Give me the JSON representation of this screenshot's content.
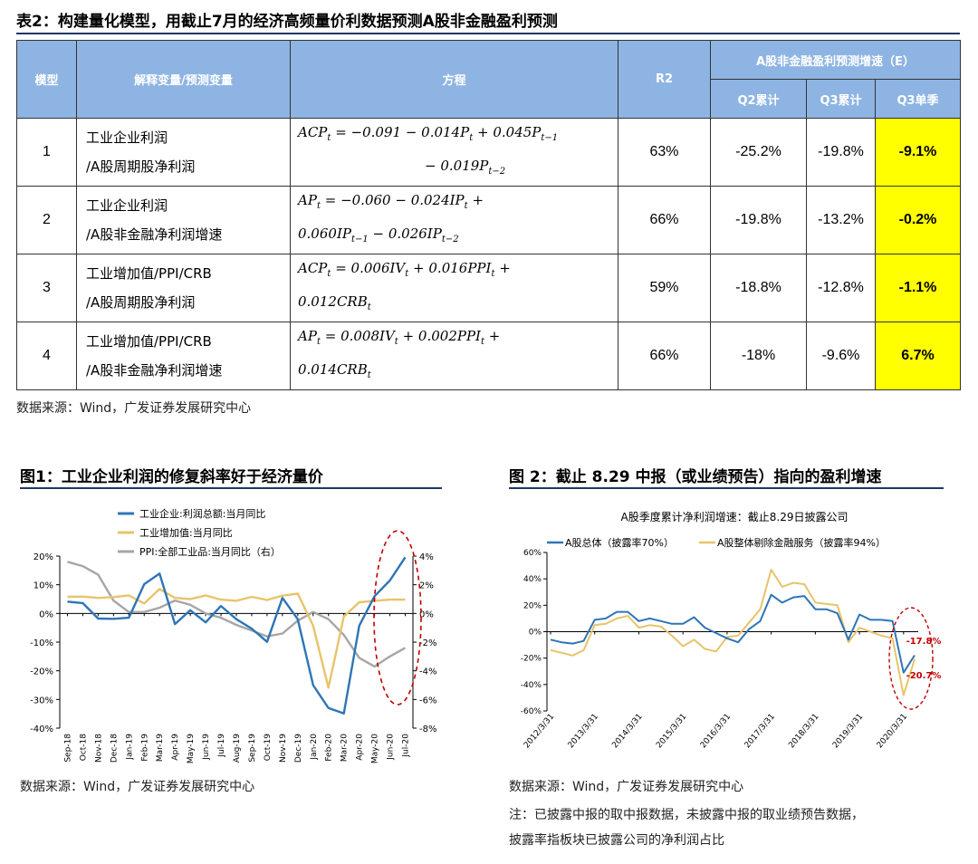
{
  "table": {
    "title": "表2：构建量化模型，用截止7月的经济高频量价利数据预测A股非金融盈利预测",
    "headers": {
      "model": "模型",
      "variables": "解释变量/预测变量",
      "equation": "方程",
      "r2": "R2",
      "forecast_group": "A股非金融盈利预测增速（E）",
      "q2": "Q2累计",
      "q3": "Q3累计",
      "q3s": "Q3单季"
    },
    "rows": [
      {
        "model": "1",
        "var1": "工业企业利润",
        "var2": "/A股周期股净利润",
        "r2": "63%",
        "q2": "-25.2%",
        "q3": "-19.8%",
        "q3s": "-9.1%"
      },
      {
        "model": "2",
        "var1": "工业企业利润",
        "var2": "/A股非金融净利润增速",
        "r2": "66%",
        "q2": "-19.8%",
        "q3": "-13.2%",
        "q3s": "-0.2%"
      },
      {
        "model": "3",
        "var1": "工业增加值/PPI/CRB",
        "var2": "/A股周期股净利润",
        "r2": "59%",
        "q2": "-18.8%",
        "q3": "-12.8%",
        "q3s": "-1.1%"
      },
      {
        "model": "4",
        "var1": "工业增加值/PPI/CRB",
        "var2": "/A股非金融净利润增速",
        "r2": "66%",
        "q2": "-18%",
        "q3": "-9.6%",
        "q3s": "6.7%"
      }
    ],
    "source": "数据来源：Wind，广发证券发展研究中心"
  },
  "fig1": {
    "title": "图1：工业企业利润的修复斜率好于经济量价",
    "legend": [
      "工业企业:利润总额:当月同比",
      "工业增加值:当月同比",
      "PPI:全部工业品:当月同比（右）"
    ],
    "source": "数据来源：Wind，广发证券发展研究中心"
  },
  "fig2": {
    "title": "图 2：截止 8.29 中报（或业绩预告）指向的盈利增速",
    "chart_title": "A股季度累计净利润增速：截止8.29日披露公司",
    "legend": [
      "A股总体（披露率70%）",
      "A股整体剔除金融服务（披露率94%）"
    ],
    "source": "数据来源：Wind，广发证券发展研究中心",
    "note1": "注：已披露中报的取中报数据，未披露中报的取业绩预告数据，",
    "note2": "披露率指板块已披露公司的净利润占比"
  },
  "colors": {
    "header": "#8eb4e3",
    "highlight": "#ffff00",
    "blue": "#2e75b6",
    "gold": "#e8c46a",
    "gray": "#a6a6a6",
    "red": "#c00000"
  },
  "chart_data": [
    {
      "type": "line",
      "x": [
        "Sep-18",
        "Oct-18",
        "Nov-18",
        "Dec-18",
        "Jan-19",
        "Feb-19",
        "Mar-19",
        "Apr-19",
        "May-19",
        "Jun-19",
        "Jul-19",
        "Aug-19",
        "Sep-19",
        "Oct-19",
        "Nov-19",
        "Dec-19",
        "Jan-20",
        "Feb-20",
        "Mar-20",
        "Apr-20",
        "May-20",
        "Jun-20",
        "Jul-20"
      ],
      "ylim": [
        -40,
        20
      ],
      "y2lim": [
        -8,
        4
      ],
      "yticks": [
        "20%",
        "10%",
        "0%",
        "-10%",
        "-20%",
        "-30%",
        "-40%"
      ],
      "y2ticks": [
        "4%",
        "2%",
        "0%",
        "-2%",
        "-4%",
        "-6%",
        "-8%"
      ],
      "series": [
        {
          "name": "工业企业:利润总额:当月同比",
          "axis": "left",
          "values": [
            4.1,
            3.6,
            -1.8,
            -1.9,
            -1.5,
            10.2,
            13.9,
            -3.7,
            1.1,
            -3.1,
            2.6,
            -2,
            -5.3,
            -9.9,
            5.4,
            -2,
            -25,
            -33,
            -34.9,
            -4.3,
            6,
            11.5,
            19.6
          ]
        },
        {
          "name": "工业增加值:当月同比",
          "axis": "left",
          "values": [
            5.8,
            5.9,
            5.4,
            5.7,
            6.3,
            3.5,
            8.5,
            5.4,
            5,
            6.3,
            4.8,
            4.4,
            5.8,
            4.7,
            6.2,
            6.9,
            -4.3,
            -25.9,
            -1.1,
            3.9,
            4.4,
            4.8,
            4.8
          ]
        },
        {
          "name": "PPI:全部工业品:当月同比（右）",
          "axis": "right",
          "values": [
            3.6,
            3.3,
            2.7,
            0.9,
            0.1,
            0.1,
            0.4,
            0.9,
            0.6,
            0,
            -0.3,
            -0.8,
            -1.2,
            -1.6,
            -1.4,
            -0.5,
            0.1,
            -0.4,
            -1.5,
            -3.1,
            -3.7,
            -3,
            -2.4
          ]
        }
      ]
    },
    {
      "type": "line",
      "title": "A股季度累计净利润增速：截止8.29日披露公司",
      "x": [
        "2012/3/31",
        "2012/6/30",
        "2012/9/30",
        "2012/12/31",
        "2013/3/31",
        "2013/6/30",
        "2013/9/30",
        "2013/12/31",
        "2014/3/31",
        "2014/6/30",
        "2014/9/30",
        "2014/12/31",
        "2015/3/31",
        "2015/6/30",
        "2015/9/30",
        "2015/12/31",
        "2016/3/31",
        "2016/6/30",
        "2016/9/30",
        "2016/12/31",
        "2017/3/31",
        "2017/6/30",
        "2017/9/30",
        "2017/12/31",
        "2018/3/31",
        "2018/6/30",
        "2018/9/30",
        "2018/12/31",
        "2019/3/31",
        "2019/6/30",
        "2019/9/30",
        "2019/12/31",
        "2020/3/31",
        "2020/6/30"
      ],
      "xticks": [
        "2012/3/31",
        "2013/3/31",
        "2014/3/31",
        "2015/3/31",
        "2016/3/31",
        "2017/3/31",
        "2018/3/31",
        "2019/3/31",
        "2020/3/31"
      ],
      "ylim": [
        -60,
        60
      ],
      "yticks": [
        "60%",
        "40%",
        "20%",
        "0%",
        "-20%",
        "-40%",
        "-60%"
      ],
      "annotations": [
        "-17.8%",
        "-20.7%"
      ],
      "series": [
        {
          "name": "A股总体（披露率70%）",
          "values": [
            -6,
            -8,
            -9,
            -7,
            9,
            10,
            15,
            15,
            8,
            10,
            8,
            6,
            6,
            11,
            3,
            -1,
            -5,
            -8,
            2,
            8,
            28,
            22,
            26,
            27,
            17,
            17,
            14,
            -6,
            13,
            9,
            9,
            8,
            -31,
            -17.8
          ]
        },
        {
          "name": "A股整体剔除金融服务（披露率94%）",
          "values": [
            -14,
            -16,
            -18,
            -14,
            5,
            6,
            10,
            12,
            3,
            5,
            4,
            -3,
            -11,
            -6,
            -13,
            -15,
            -4,
            -3,
            7,
            17,
            47,
            34,
            37,
            36,
            22,
            21,
            20,
            -8,
            3,
            0,
            -3,
            -5,
            -48,
            -20.7
          ]
        }
      ]
    }
  ]
}
